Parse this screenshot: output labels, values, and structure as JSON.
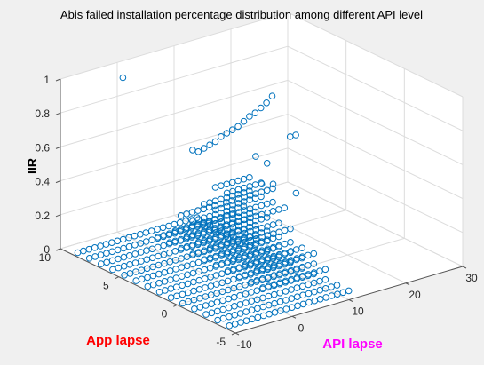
{
  "chart_data": {
    "type": "scatter",
    "projection": "3d",
    "title": "Abis failed installation percentage distribution among different API level",
    "xlabel": "API lapse",
    "ylabel": "App lapse",
    "zlabel": "IIR",
    "xlabel_color": "#ff00ff",
    "ylabel_color": "#ff0000",
    "zlabel_color": "#000000",
    "marker": "open-circle",
    "marker_color": "#0072bd",
    "grid": true,
    "xlim": [
      -10,
      30
    ],
    "ylim": [
      -5,
      10
    ],
    "zlim": [
      0,
      1
    ],
    "xticks": [
      -10,
      0,
      10,
      20,
      30
    ],
    "yticks": [
      -5,
      0,
      5,
      10
    ],
    "zticks": [
      0,
      0.2,
      0.4,
      0.6,
      0.8,
      1
    ],
    "xtick_labels": [
      "-10",
      "0",
      "10",
      "20",
      "30"
    ],
    "ytick_labels": [
      "-5",
      "0",
      "5",
      "10"
    ],
    "ztick_labels": [
      "0",
      "0.2",
      "0.4",
      "0.6",
      "0.8",
      "1"
    ],
    "points": [
      {
        "x": 1,
        "y": 10,
        "z": 0.9
      },
      {
        "x": 14,
        "y": 2,
        "z": 0.69
      },
      {
        "x": 15,
        "y": 2,
        "z": 0.69
      },
      {
        "x": 3,
        "y": 5,
        "z": 0.62
      },
      {
        "x": 4,
        "y": 5,
        "z": 0.6
      },
      {
        "x": 5,
        "y": 5,
        "z": 0.61
      },
      {
        "x": 6,
        "y": 5,
        "z": 0.62
      },
      {
        "x": 7,
        "y": 5,
        "z": 0.63
      },
      {
        "x": 8,
        "y": 5,
        "z": 0.65
      },
      {
        "x": 9,
        "y": 5,
        "z": 0.66
      },
      {
        "x": 10,
        "y": 5,
        "z": 0.67
      },
      {
        "x": 11,
        "y": 5,
        "z": 0.68
      },
      {
        "x": 12,
        "y": 5,
        "z": 0.7
      },
      {
        "x": 13,
        "y": 5,
        "z": 0.72
      },
      {
        "x": 14,
        "y": 5,
        "z": 0.73
      },
      {
        "x": 15,
        "y": 5,
        "z": 0.75
      },
      {
        "x": 16,
        "y": 5,
        "z": 0.77
      },
      {
        "x": 17,
        "y": 5,
        "z": 0.8
      },
      {
        "x": 10,
        "y": 3,
        "z": 0.58
      },
      {
        "x": 12,
        "y": 3,
        "z": 0.52
      },
      {
        "x": 9,
        "y": 2,
        "z": 0.46
      },
      {
        "x": 11,
        "y": 2,
        "z": 0.44
      },
      {
        "x": 5,
        "y": 2,
        "z": 0.33
      },
      {
        "x": 13,
        "y": 1,
        "z": 0.4
      }
    ],
    "grid_blocks": [
      {
        "x": [
          -9,
          12
        ],
        "y": [
          -4,
          9
        ],
        "z": 0.0
      },
      {
        "x": [
          1,
          12
        ],
        "y": [
          -2,
          7
        ],
        "z": 0.06
      },
      {
        "x": [
          2,
          12
        ],
        "y": [
          -1,
          6
        ],
        "z": 0.12
      },
      {
        "x": [
          3,
          12
        ],
        "y": [
          1,
          6
        ],
        "z": 0.2
      },
      {
        "x": [
          5,
          13
        ],
        "y": [
          2,
          5
        ],
        "z": 0.28
      },
      {
        "x": [
          7,
          13
        ],
        "y": [
          3,
          5
        ],
        "z": 0.36
      }
    ]
  }
}
